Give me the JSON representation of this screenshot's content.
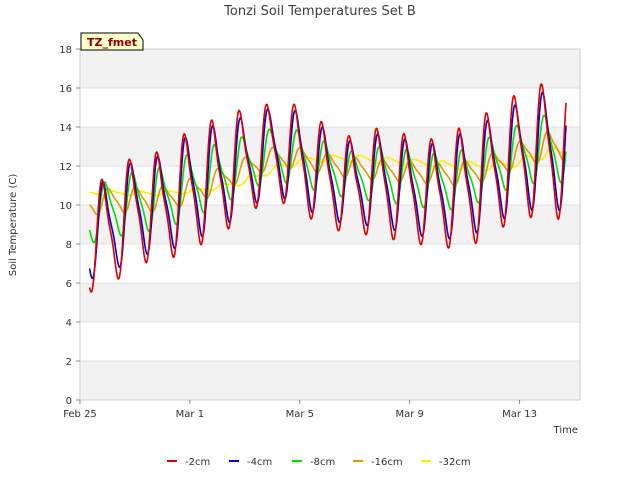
{
  "chart_data": {
    "type": "line",
    "title": "Tonzi Soil Temperatures Set B",
    "xlabel": "Time",
    "ylabel": "Soil Temperature (C)",
    "ylim": [
      0,
      18
    ],
    "yticks": [
      0,
      2,
      4,
      6,
      8,
      10,
      12,
      14,
      16,
      18
    ],
    "xlim": [
      0,
      18.2
    ],
    "xticks": [
      {
        "value": 0,
        "label": "Feb 25"
      },
      {
        "value": 4,
        "label": "Mar 1"
      },
      {
        "value": 8,
        "label": "Mar 5"
      },
      {
        "value": 12,
        "label": "Mar 9"
      },
      {
        "value": 16,
        "label": "Mar 13"
      }
    ],
    "x_unit": "days since Feb 25",
    "grid": "horizontal alternating bands",
    "legend_position": "bottom",
    "tag": "TZ_fmet",
    "series": [
      {
        "name": "-2cm",
        "color": "#dd0000",
        "mean": [
          7.9,
          8.6,
          9.8,
          9.9,
          10.8,
          11.4,
          12.2,
          12.8,
          12.4,
          11.4,
          11.0,
          11.2,
          10.8,
          10.6,
          10.9,
          11.7,
          12.6,
          12.8
        ],
        "amp": [
          2.2,
          2.7,
          2.5,
          2.6,
          2.8,
          2.8,
          2.5,
          2.2,
          2.5,
          2.4,
          2.2,
          2.6,
          2.5,
          2.5,
          2.9,
          2.9,
          2.9,
          3.2
        ]
      },
      {
        "name": "-4cm",
        "color": "#0000cc",
        "mean": [
          8.3,
          8.8,
          9.9,
          10.0,
          10.9,
          11.4,
          12.1,
          12.8,
          12.4,
          11.5,
          11.1,
          11.3,
          10.9,
          10.7,
          11.0,
          11.7,
          12.5,
          12.8
        ],
        "amp": [
          1.9,
          2.3,
          2.2,
          2.3,
          2.5,
          2.5,
          2.2,
          2.0,
          2.2,
          2.1,
          1.9,
          2.2,
          2.2,
          2.2,
          2.5,
          2.5,
          2.5,
          2.8
        ]
      },
      {
        "name": "-8cm",
        "color": "#00dd00",
        "mean": [
          9.3,
          9.7,
          10.2,
          10.3,
          11.0,
          11.5,
          12.1,
          12.6,
          12.4,
          11.9,
          11.5,
          11.6,
          11.4,
          11.2,
          11.3,
          12.0,
          12.6,
          12.9
        ],
        "amp": [
          1.2,
          1.4,
          1.4,
          1.5,
          1.5,
          1.5,
          1.3,
          1.2,
          1.3,
          1.2,
          1.1,
          1.3,
          1.3,
          1.3,
          1.4,
          1.4,
          1.4,
          1.6
        ]
      },
      {
        "name": "-16cm",
        "color": "#e69500",
        "mean": [
          10.0,
          10.2,
          10.3,
          10.3,
          10.7,
          11.2,
          11.9,
          12.4,
          12.4,
          12.1,
          11.9,
          11.8,
          11.7,
          11.6,
          11.6,
          12.0,
          12.6,
          13.0
        ],
        "amp": [
          0.5,
          0.6,
          0.6,
          0.6,
          0.6,
          0.6,
          0.5,
          0.5,
          0.5,
          0.5,
          0.5,
          0.5,
          0.5,
          0.5,
          0.6,
          0.6,
          0.6,
          0.7
        ]
      },
      {
        "name": "-32cm",
        "color": "#ffee00",
        "mean": [
          10.6,
          10.6,
          10.6,
          10.6,
          10.7,
          10.9,
          11.2,
          11.8,
          12.3,
          12.4,
          12.4,
          12.3,
          12.2,
          12.1,
          12.0,
          12.0,
          12.2,
          12.7
        ],
        "amp": [
          0.1,
          0.1,
          0.1,
          0.1,
          0.1,
          0.1,
          0.15,
          0.15,
          0.15,
          0.15,
          0.15,
          0.15,
          0.15,
          0.15,
          0.2,
          0.2,
          0.2,
          0.25
        ]
      }
    ]
  }
}
